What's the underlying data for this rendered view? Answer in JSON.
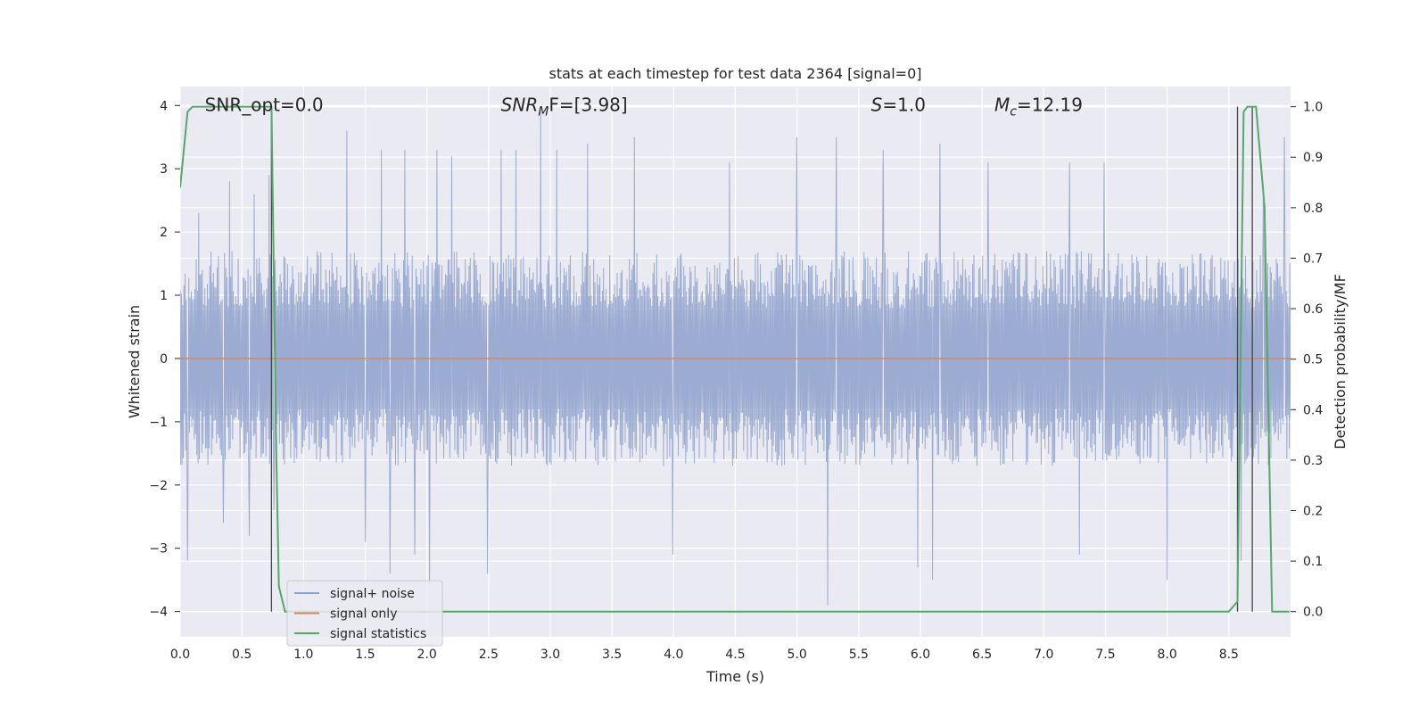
{
  "chart_data": {
    "type": "line",
    "title": "stats at each timestep for test data 2364 [signal=0]",
    "xlabel": "Time (s)",
    "ylabel_left": "Whitened strain",
    "ylabel_right": "Detection probability/MF",
    "xlim": [
      0.0,
      9.0
    ],
    "ylim_left": [
      -4.4,
      4.3
    ],
    "ylim_right": [
      -0.05,
      1.04
    ],
    "x_ticks": [
      "0.0",
      "0.5",
      "1.0",
      "1.5",
      "2.0",
      "2.5",
      "3.0",
      "3.5",
      "4.0",
      "4.5",
      "5.0",
      "5.5",
      "6.0",
      "6.5",
      "7.0",
      "7.5",
      "8.0",
      "8.5"
    ],
    "y_ticks_left": [
      "-4",
      "-3",
      "-2",
      "-1",
      "0",
      "1",
      "2",
      "3",
      "4"
    ],
    "y_ticks_right": [
      "0.0",
      "0.1",
      "0.2",
      "0.3",
      "0.4",
      "0.5",
      "0.6",
      "0.7",
      "0.8",
      "0.9",
      "1.0"
    ],
    "grid": true,
    "legend_position": "lower-left",
    "annotations": [
      {
        "prefix": "SNR_opt=0.0",
        "italic": "",
        "sub": "",
        "suffix": "",
        "x": 0.2
      },
      {
        "prefix": "",
        "italic": "SNR",
        "sub": "M",
        "suffix": "F=[3.98]",
        "x": 2.6
      },
      {
        "prefix": "",
        "italic": "S",
        "sub": "",
        "suffix": "=1.0",
        "x": 5.6
      },
      {
        "prefix": "",
        "italic": "M",
        "sub": "c",
        "suffix": "=12.19",
        "x": 6.6
      }
    ],
    "vlines": [
      0.74,
      8.57,
      8.69
    ],
    "series": [
      {
        "name": "signal+ noise",
        "color": "#8da0cb",
        "kind": "noise",
        "amplitude_envelope": 1.6,
        "peak_spikes": [
          {
            "x": 0.06,
            "y": -3.2
          },
          {
            "x": 0.15,
            "y": 2.3
          },
          {
            "x": 0.35,
            "y": -2.6
          },
          {
            "x": 0.4,
            "y": 2.8
          },
          {
            "x": 0.56,
            "y": -2.8
          },
          {
            "x": 0.6,
            "y": 2.6
          },
          {
            "x": 0.72,
            "y": 2.9
          },
          {
            "x": 0.76,
            "y": -2.4
          },
          {
            "x": 1.35,
            "y": 3.6
          },
          {
            "x": 1.5,
            "y": -2.9
          },
          {
            "x": 1.63,
            "y": 3.3
          },
          {
            "x": 1.7,
            "y": -3.4
          },
          {
            "x": 1.82,
            "y": 3.3
          },
          {
            "x": 1.9,
            "y": -3.1
          },
          {
            "x": 2.02,
            "y": -3.6
          },
          {
            "x": 2.08,
            "y": 3.3
          },
          {
            "x": 2.2,
            "y": 3.2
          },
          {
            "x": 2.49,
            "y": -3.4
          },
          {
            "x": 2.6,
            "y": 3.3
          },
          {
            "x": 2.72,
            "y": 3.3
          },
          {
            "x": 2.92,
            "y": 3.9
          },
          {
            "x": 3.05,
            "y": 3.3
          },
          {
            "x": 3.3,
            "y": 3.4
          },
          {
            "x": 3.68,
            "y": 3.5
          },
          {
            "x": 3.99,
            "y": -3.1
          },
          {
            "x": 4.45,
            "y": 3.1
          },
          {
            "x": 5.0,
            "y": 3.5
          },
          {
            "x": 5.25,
            "y": -3.9
          },
          {
            "x": 5.32,
            "y": 3.5
          },
          {
            "x": 5.7,
            "y": 3.3
          },
          {
            "x": 5.98,
            "y": -3.3
          },
          {
            "x": 6.1,
            "y": -3.5
          },
          {
            "x": 6.16,
            "y": 3.4
          },
          {
            "x": 6.55,
            "y": 3.1
          },
          {
            "x": 7.21,
            "y": 3.1
          },
          {
            "x": 7.29,
            "y": -3.1
          },
          {
            "x": 7.49,
            "y": 3.1
          },
          {
            "x": 8.0,
            "y": -3.5
          },
          {
            "x": 8.6,
            "y": -3.2
          },
          {
            "x": 8.78,
            "y": 2.6
          },
          {
            "x": 8.95,
            "y": 3.5
          }
        ]
      },
      {
        "name": "signal only",
        "color": "#dd8452",
        "kind": "flat",
        "value": 0.0
      },
      {
        "name": "signal statistics",
        "color": "#55a868",
        "kind": "line",
        "axis": "right",
        "x": [
          0.0,
          0.06,
          0.1,
          0.2,
          0.3,
          0.4,
          0.5,
          0.6,
          0.7,
          0.74,
          0.78,
          0.8,
          0.85,
          0.9,
          1.0,
          2.0,
          2.3,
          2.4,
          4.0,
          6.0,
          6.4,
          6.5,
          6.6,
          7.0,
          7.3,
          7.5,
          8.0,
          8.5,
          8.57,
          8.62,
          8.65,
          8.72,
          8.79,
          8.85,
          8.93,
          8.99
        ],
        "values": [
          0.84,
          0.99,
          1.0,
          1.0,
          1.0,
          1.0,
          1.0,
          1.0,
          1.0,
          1.0,
          0.3,
          0.05,
          0.0,
          0.0,
          0.0,
          0.0,
          0.0,
          0.0,
          0.0,
          0.0,
          0.0,
          0.0,
          0.0,
          0.0,
          0.0,
          0.0,
          0.0,
          0.0,
          0.02,
          0.99,
          1.0,
          1.0,
          0.8,
          0.0,
          0.0,
          0.0
        ]
      }
    ]
  }
}
